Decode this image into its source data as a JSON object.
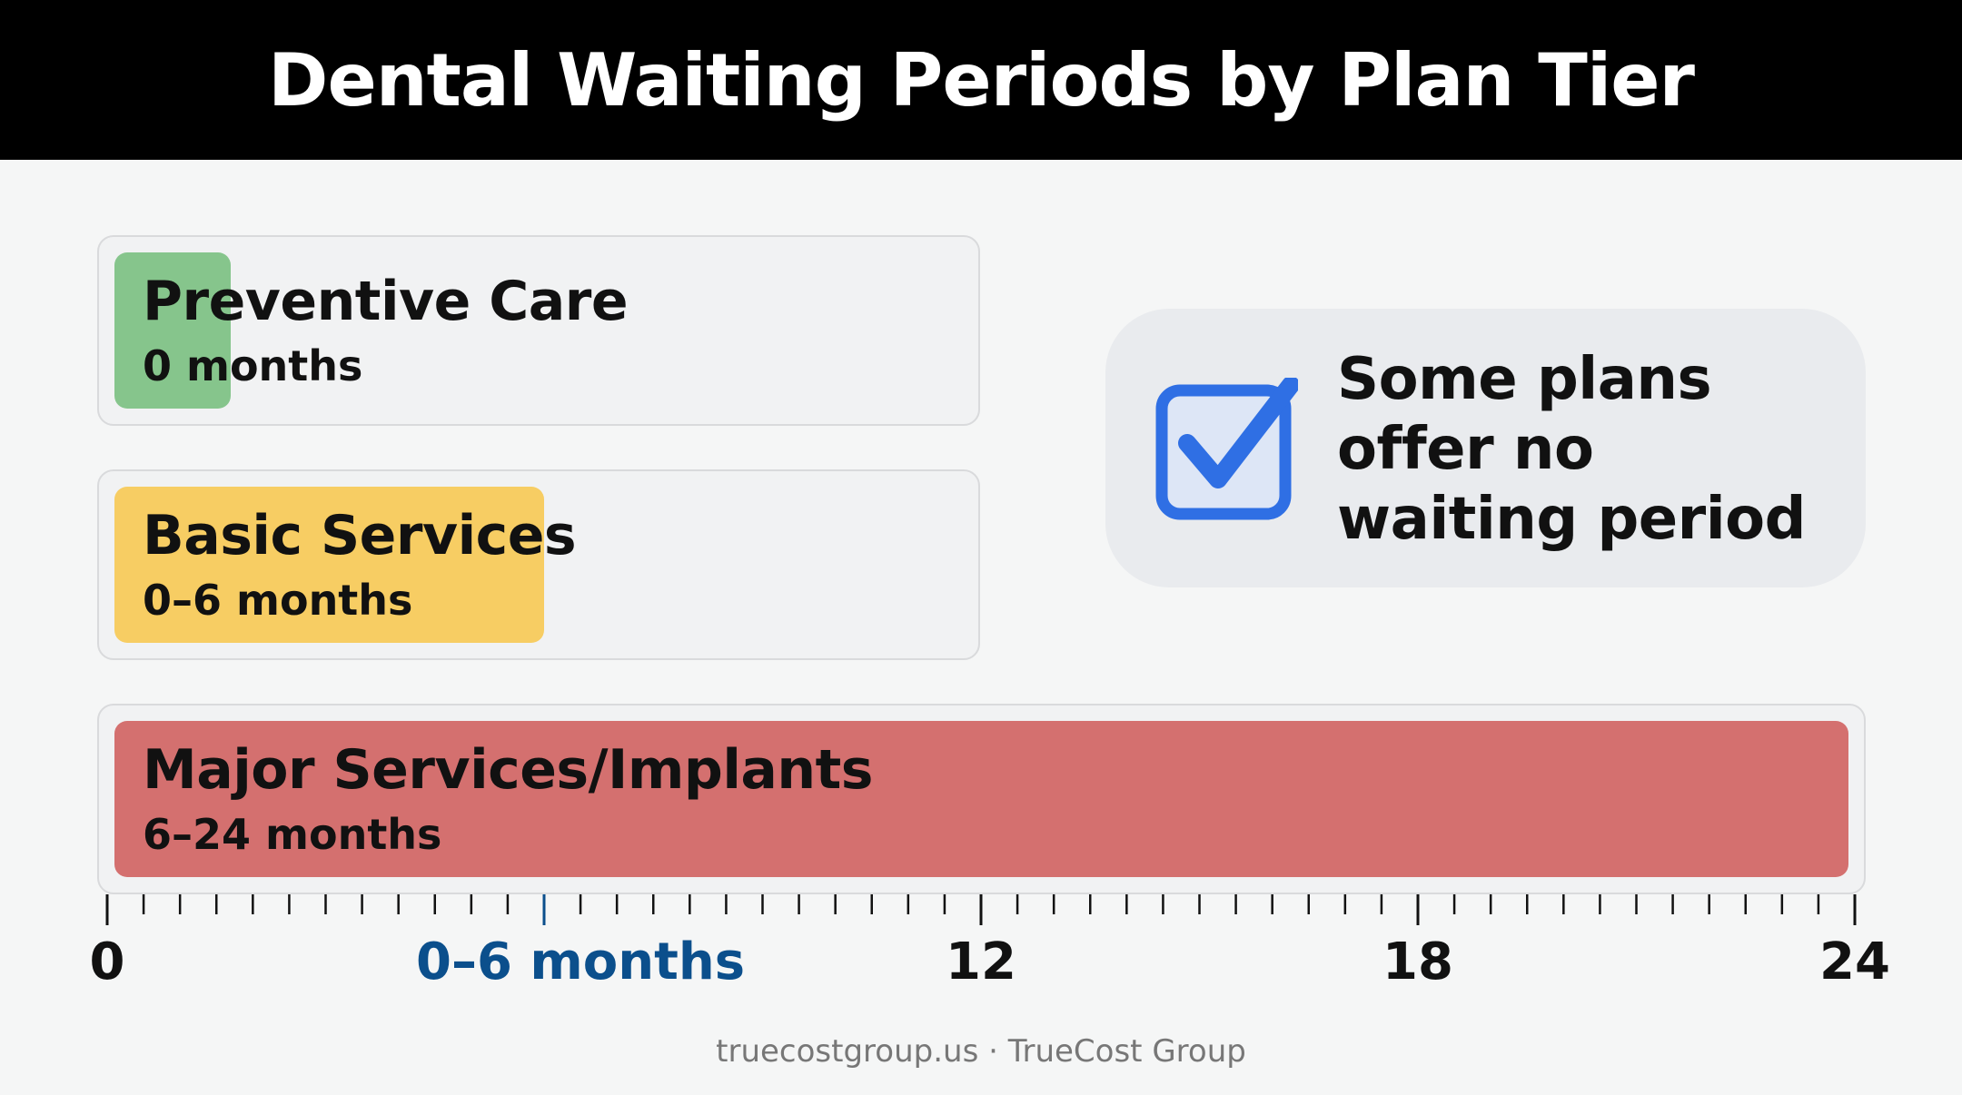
{
  "title": "Dental Waiting Periods by Plan Tier",
  "chart_data": {
    "type": "bar",
    "orientation": "horizontal",
    "axis": {
      "xlim": [
        0,
        24
      ],
      "ticks": [
        {
          "value": 0,
          "label": "0",
          "highlight": false
        },
        {
          "value": 6,
          "label": "0–6 months",
          "highlight": true
        },
        {
          "value": 12,
          "label": "12",
          "highlight": false
        },
        {
          "value": 18,
          "label": "18",
          "highlight": false
        },
        {
          "value": 24,
          "label": "24",
          "highlight": false
        }
      ],
      "minor_tick_step": 1,
      "highlight_color": "#0b4f8c"
    },
    "bars": [
      {
        "name": "Preventive Care",
        "range_label": "0 months",
        "end": 0,
        "color": "#86c58c"
      },
      {
        "name": "Basic Services",
        "range_label": "0–6 months",
        "end": 6,
        "color": "#f7cd63"
      },
      {
        "name": "Major Services/Implants",
        "range_label": "6–24 months",
        "end": 24,
        "color": "#d4706f"
      }
    ]
  },
  "callout": {
    "icon": "checkbox-check-icon",
    "icon_color": "#2f6fe4",
    "text": "Some plans offer no waiting period"
  },
  "footer": "truecostgroup.us · TrueCost Group"
}
